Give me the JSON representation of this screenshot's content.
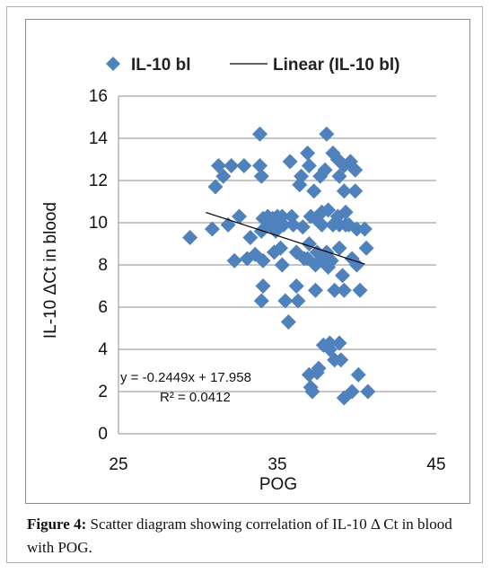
{
  "chart_data": {
    "type": "scatter",
    "title": "",
    "xlabel": "POG",
    "ylabel": "IL-10 ΔCt in blood",
    "xlim": [
      25,
      45
    ],
    "ylim": [
      0,
      16
    ],
    "x_ticks": [
      "25",
      "35",
      "45"
    ],
    "y_ticks": [
      "0",
      "2",
      "4",
      "6",
      "8",
      "10",
      "12",
      "14",
      "16"
    ],
    "grid": "horizontal",
    "legend_position": "top",
    "marker_color": "#4f81bd",
    "trendline_color": "#000000",
    "series": [
      {
        "name": "IL-10 bl",
        "points": [
          [
            29.5,
            9.3
          ],
          [
            30.9,
            9.7
          ],
          [
            31.1,
            11.7
          ],
          [
            31.3,
            12.7
          ],
          [
            31.6,
            12.2
          ],
          [
            31.9,
            9.9
          ],
          [
            32.1,
            12.7
          ],
          [
            32.3,
            8.2
          ],
          [
            32.6,
            10.3
          ],
          [
            32.9,
            12.7
          ],
          [
            33.1,
            8.3
          ],
          [
            33.3,
            9.3
          ],
          [
            33.6,
            8.5
          ],
          [
            33.9,
            14.2
          ],
          [
            33.9,
            12.7
          ],
          [
            34.0,
            12.2
          ],
          [
            34.1,
            10.2
          ],
          [
            34.0,
            9.6
          ],
          [
            34.1,
            8.2
          ],
          [
            34.1,
            7.0
          ],
          [
            34.0,
            6.3
          ],
          [
            34.4,
            10.3
          ],
          [
            34.5,
            9.9
          ],
          [
            34.7,
            10.2
          ],
          [
            34.9,
            9.6
          ],
          [
            34.8,
            8.6
          ],
          [
            35.0,
            10.3
          ],
          [
            35.1,
            9.8
          ],
          [
            35.3,
            10.3
          ],
          [
            35.4,
            9.9
          ],
          [
            35.2,
            8.8
          ],
          [
            35.3,
            8.0
          ],
          [
            35.5,
            6.3
          ],
          [
            35.7,
            5.3
          ],
          [
            35.8,
            12.9
          ],
          [
            35.9,
            10.3
          ],
          [
            36.0,
            9.9
          ],
          [
            36.2,
            8.6
          ],
          [
            36.2,
            7.0
          ],
          [
            36.3,
            6.3
          ],
          [
            36.4,
            11.8
          ],
          [
            36.5,
            12.2
          ],
          [
            36.6,
            9.8
          ],
          [
            36.7,
            8.3
          ],
          [
            36.9,
            13.3
          ],
          [
            37.0,
            12.7
          ],
          [
            37.1,
            10.3
          ],
          [
            37.0,
            9.0
          ],
          [
            36.9,
            8.3
          ],
          [
            37.0,
            2.8
          ],
          [
            37.1,
            2.2
          ],
          [
            37.2,
            2.0
          ],
          [
            37.3,
            11.5
          ],
          [
            37.4,
            10.2
          ],
          [
            37.5,
            8.6
          ],
          [
            37.4,
            8.0
          ],
          [
            37.4,
            6.8
          ],
          [
            37.5,
            2.9
          ],
          [
            37.6,
            3.1
          ],
          [
            37.7,
            12.2
          ],
          [
            37.8,
            10.5
          ],
          [
            37.8,
            9.9
          ],
          [
            37.9,
            8.2
          ],
          [
            37.9,
            4.2
          ],
          [
            38.1,
            14.2
          ],
          [
            38.0,
            12.5
          ],
          [
            38.2,
            10.6
          ],
          [
            38.1,
            8.6
          ],
          [
            38.2,
            7.9
          ],
          [
            38.3,
            4.3
          ],
          [
            38.3,
            4.0
          ],
          [
            38.5,
            13.3
          ],
          [
            38.5,
            9.9
          ],
          [
            38.4,
            8.2
          ],
          [
            38.6,
            6.8
          ],
          [
            38.6,
            3.5
          ],
          [
            38.8,
            13.0
          ],
          [
            38.9,
            12.2
          ],
          [
            38.8,
            10.3
          ],
          [
            38.9,
            9.9
          ],
          [
            38.9,
            8.8
          ],
          [
            38.9,
            4.3
          ],
          [
            39.0,
            3.5
          ],
          [
            39.2,
            12.7
          ],
          [
            39.2,
            11.5
          ],
          [
            39.3,
            10.5
          ],
          [
            39.3,
            9.9
          ],
          [
            39.1,
            7.5
          ],
          [
            39.2,
            6.8
          ],
          [
            39.2,
            1.7
          ],
          [
            39.6,
            12.9
          ],
          [
            39.5,
            9.9
          ],
          [
            39.7,
            8.3
          ],
          [
            39.7,
            2.0
          ],
          [
            39.9,
            12.5
          ],
          [
            39.9,
            11.5
          ],
          [
            40.0,
            9.7
          ],
          [
            40.0,
            8.0
          ],
          [
            40.2,
            6.8
          ],
          [
            40.1,
            2.8
          ],
          [
            40.5,
            9.7
          ],
          [
            40.6,
            8.8
          ],
          [
            40.7,
            2.0
          ]
        ]
      }
    ],
    "trendline": {
      "name": "Linear (IL-10 bl)",
      "slope": -0.2449,
      "intercept": 17.958,
      "x_range": [
        30.5,
        40.5
      ],
      "equation": "y = -0.2449x + 17.958",
      "r2": "R² = 0.0412"
    }
  },
  "caption": {
    "label": "Figure 4:",
    "text": " Scatter diagram showing correlation of IL-10 Δ Ct in blood with POG."
  }
}
